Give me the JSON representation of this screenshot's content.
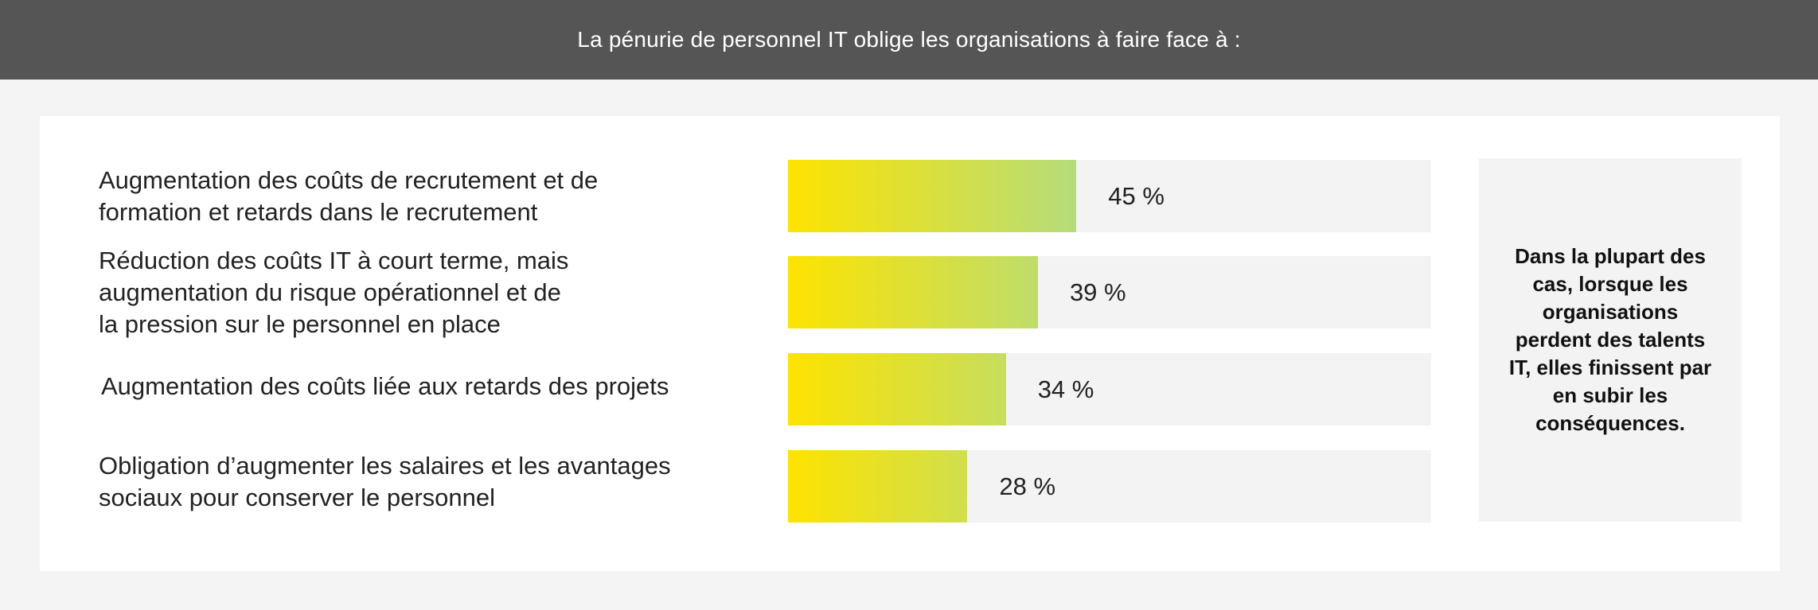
{
  "header": {
    "title": "La pénurie de personnel IT oblige les organisations à faire face à :"
  },
  "side_note": {
    "text": "Dans la plupart des cas, lorsque les organisations perdent des talents IT, elles finissent par en subir les conséquences."
  },
  "colors": {
    "header_bg": "#555555",
    "bar_start": "#fde300",
    "bar_end": "#b5dc7c",
    "track": "#f3f3f3"
  },
  "chart_data": {
    "type": "bar",
    "orientation": "horizontal",
    "categories": [
      "Augmentation des coûts de recrutement et de\nformation et retards dans le recrutement",
      "Réduction des coûts IT à court terme, mais\naugmentation du risque opérationnel et de\nla pression sur le personnel en place",
      "Augmentation des coûts liée aux retards des projets",
      "Obligation d’augmenter les salaires et les avantages\nsociaux pour conserver le personnel"
    ],
    "values": [
      45,
      39,
      34,
      28
    ],
    "value_labels": [
      "45 %",
      "39 %",
      "34 %",
      "28 %"
    ],
    "xlim": [
      0,
      100
    ],
    "grid": false,
    "legend": "none"
  }
}
